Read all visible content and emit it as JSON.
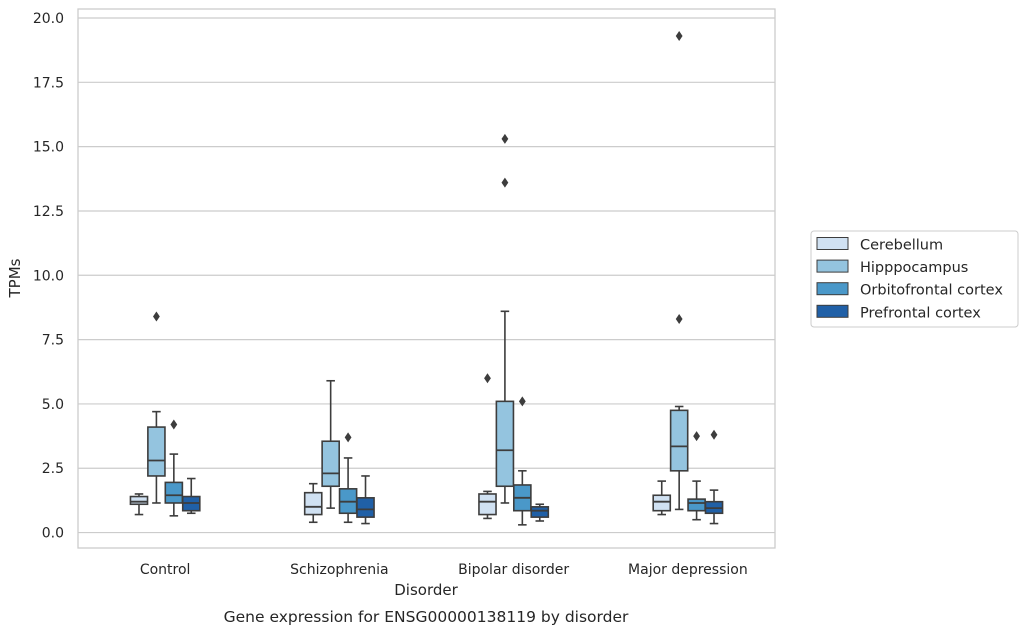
{
  "chart_data": {
    "type": "box",
    "title": "",
    "caption": "Gene expression for ENSG00000138119 by disorder",
    "xlabel": "Disorder",
    "ylabel": "TPMs",
    "ylim": [
      -0.6,
      20.35
    ],
    "yticks": [
      "0.0",
      "2.5",
      "5.0",
      "7.5",
      "10.0",
      "12.5",
      "15.0",
      "17.5",
      "20.0"
    ],
    "grid": "horizontal",
    "legend_position": "right",
    "categories": [
      "Control",
      "Schizophrenia",
      "Bipolar disorder",
      "Major depression"
    ],
    "series": [
      {
        "name": "Cerebellum",
        "color": "#d0e1f2",
        "boxes": [
          {
            "whislo": 0.7,
            "q1": 1.1,
            "med": 1.2,
            "q3": 1.4,
            "whishi": 1.5,
            "fliers": []
          },
          {
            "whislo": 0.4,
            "q1": 0.7,
            "med": 1.0,
            "q3": 1.55,
            "whishi": 1.9,
            "fliers": []
          },
          {
            "whislo": 0.55,
            "q1": 0.7,
            "med": 1.2,
            "q3": 1.5,
            "whishi": 1.6,
            "fliers": [
              6.0
            ]
          },
          {
            "whislo": 0.7,
            "q1": 0.85,
            "med": 1.2,
            "q3": 1.45,
            "whishi": 2.0,
            "fliers": []
          }
        ]
      },
      {
        "name": "Hipppocampus",
        "color": "#94c4df",
        "boxes": [
          {
            "whislo": 1.15,
            "q1": 2.2,
            "med": 2.8,
            "q3": 4.1,
            "whishi": 4.7,
            "fliers": [
              8.4
            ]
          },
          {
            "whislo": 0.95,
            "q1": 1.8,
            "med": 2.3,
            "q3": 3.55,
            "whishi": 5.9,
            "fliers": []
          },
          {
            "whislo": 1.15,
            "q1": 1.8,
            "med": 3.2,
            "q3": 5.1,
            "whishi": 8.6,
            "fliers": [
              15.3,
              13.6
            ]
          },
          {
            "whislo": 0.9,
            "q1": 2.4,
            "med": 3.35,
            "q3": 4.75,
            "whishi": 4.9,
            "fliers": [
              19.3,
              8.3
            ]
          }
        ]
      },
      {
        "name": "Orbitofrontal cortex",
        "color": "#4a98c9",
        "boxes": [
          {
            "whislo": 0.65,
            "q1": 1.15,
            "med": 1.45,
            "q3": 1.95,
            "whishi": 3.05,
            "fliers": [
              4.2
            ]
          },
          {
            "whislo": 0.4,
            "q1": 0.75,
            "med": 1.2,
            "q3": 1.7,
            "whishi": 2.9,
            "fliers": [
              3.7
            ]
          },
          {
            "whislo": 0.3,
            "q1": 0.85,
            "med": 1.35,
            "q3": 1.85,
            "whishi": 2.4,
            "fliers": [
              5.1
            ]
          },
          {
            "whislo": 0.5,
            "q1": 0.85,
            "med": 1.15,
            "q3": 1.3,
            "whishi": 2.0,
            "fliers": [
              3.75
            ]
          }
        ]
      },
      {
        "name": "Prefrontal cortex",
        "color": "#2060a7",
        "boxes": [
          {
            "whislo": 0.75,
            "q1": 0.85,
            "med": 1.15,
            "q3": 1.4,
            "whishi": 2.1,
            "fliers": []
          },
          {
            "whislo": 0.35,
            "q1": 0.6,
            "med": 0.9,
            "q3": 1.35,
            "whishi": 2.2,
            "fliers": []
          },
          {
            "whislo": 0.45,
            "q1": 0.6,
            "med": 0.85,
            "q3": 1.0,
            "whishi": 1.1,
            "fliers": []
          },
          {
            "whislo": 0.35,
            "q1": 0.75,
            "med": 0.95,
            "q3": 1.2,
            "whishi": 1.65,
            "fliers": [
              3.8
            ]
          }
        ]
      }
    ]
  }
}
